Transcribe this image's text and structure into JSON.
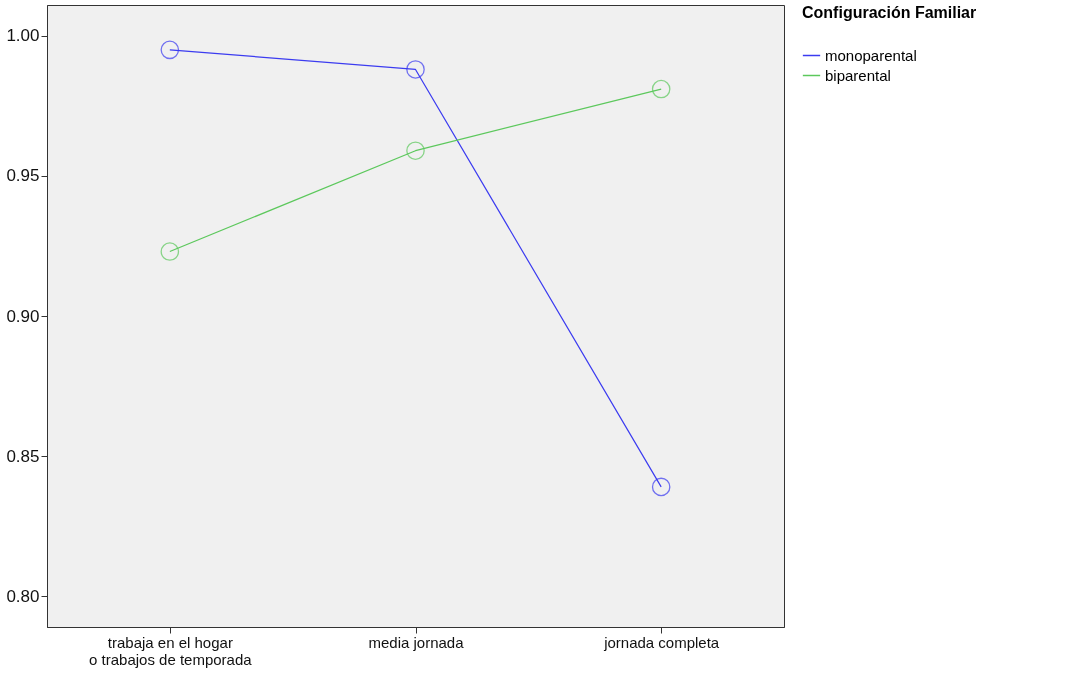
{
  "chart_data": {
    "type": "line",
    "legend_title": "Configuración Familiar",
    "categories": [
      "trabaja en el hogar\no trabajos de temporada",
      "media jornada",
      "jornada completa"
    ],
    "series": [
      {
        "name": "monoparental",
        "color": "#3b3bf0",
        "values": [
          0.995,
          0.988,
          0.839
        ]
      },
      {
        "name": "biparental",
        "color": "#5cc85c",
        "values": [
          0.923,
          0.959,
          0.981
        ]
      }
    ],
    "ylim": [
      0.789,
      1.011
    ],
    "yticks": [
      {
        "value": 0.8,
        "label": "0.80"
      },
      0.85,
      {
        "value": 0.9,
        "label": "0.90"
      },
      0.95,
      {
        "value": 1.0,
        "label": "1.00"
      }
    ],
    "marker": "circle",
    "line_style": "solid",
    "grid": false,
    "legend": "top right"
  }
}
